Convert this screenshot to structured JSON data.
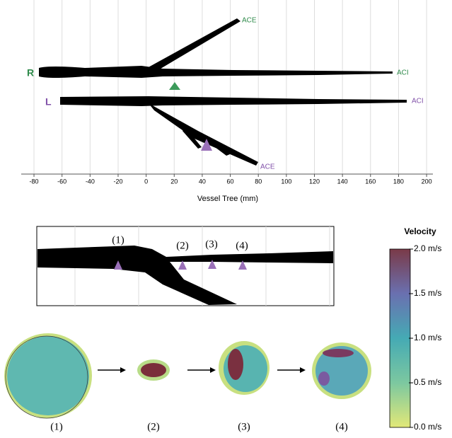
{
  "vessel_tree": {
    "xlabel": "Vessel Tree (mm)",
    "xlim": [
      -89.1,
      204.5
    ],
    "xticks": [
      -80,
      -60,
      -40,
      -20,
      0,
      20,
      40,
      60,
      80,
      100,
      120,
      140,
      160,
      180,
      200
    ],
    "side_labels": [
      "R",
      "L"
    ],
    "branch_labels": {
      "right_ace": "ACE",
      "right_aci": "ACI",
      "left_aci": "ACI",
      "left_ace": "ACE"
    }
  },
  "zoom": {
    "markers": [
      "(1)",
      "(2)",
      "(3)",
      "(4)"
    ]
  },
  "cross_sections": {
    "labels": [
      "(1)",
      "(2)",
      "(3)",
      "(4)"
    ]
  },
  "colorbar": {
    "title": "Velocity",
    "lim": [
      0,
      2
    ],
    "ticks": [
      {
        "value": 0,
        "label": "0.0 m/s"
      },
      {
        "value": 0.5,
        "label": "0.5 m/s"
      },
      {
        "value": 1,
        "label": "1.0 m/s"
      },
      {
        "value": 1.5,
        "label": "1.5 m/s"
      },
      {
        "value": 2,
        "label": "2.0 m/s"
      }
    ]
  }
}
